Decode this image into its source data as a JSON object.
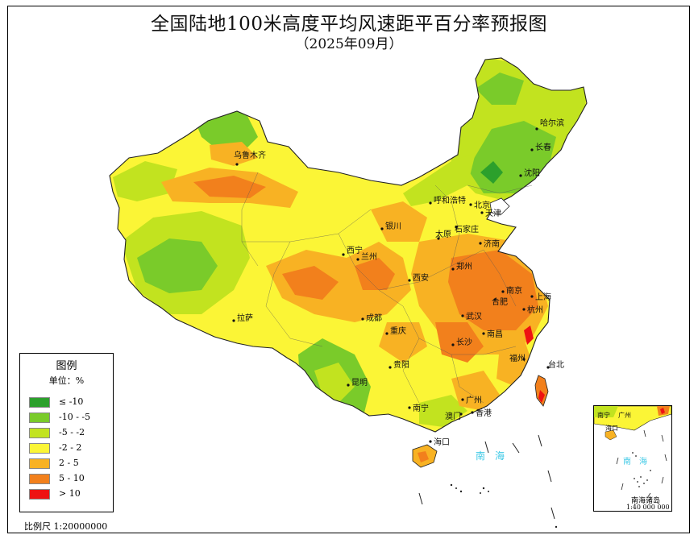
{
  "title": "全国陆地100米高度平均风速距平百分率预报图",
  "subtitle": "（2025年09月）",
  "legend": {
    "title": "图例",
    "unit": "单位：%",
    "items": [
      {
        "label": "≤ -10",
        "color": "#2ca02c"
      },
      {
        "label": "-10 - -5",
        "color": "#7acb2a"
      },
      {
        "label": "-5 - -2",
        "color": "#c2e31f"
      },
      {
        "label": "-2 - 2",
        "color": "#fbf536"
      },
      {
        "label": "2 - 5",
        "color": "#f8b223"
      },
      {
        "label": "5 - 10",
        "color": "#f2801c"
      },
      {
        "label": "> 10",
        "color": "#ee1212"
      }
    ]
  },
  "scale_text": "比例尺 1:20000000",
  "inset": {
    "label": "南海诸岛",
    "scale_text": "1:40 000 000",
    "cities": [
      {
        "name": "南宁"
      },
      {
        "name": "广州"
      },
      {
        "name": "海口"
      }
    ],
    "sea_label": "南　海"
  },
  "sea_labels": [
    {
      "name": "南　海"
    }
  ],
  "cities": [
    {
      "name": "哈尔滨"
    },
    {
      "name": "长春"
    },
    {
      "name": "沈阳"
    },
    {
      "name": "乌鲁木齐"
    },
    {
      "name": "呼和浩特"
    },
    {
      "name": "北京"
    },
    {
      "name": "天津"
    },
    {
      "name": "石家庄"
    },
    {
      "name": "太原"
    },
    {
      "name": "济南"
    },
    {
      "name": "银川"
    },
    {
      "name": "西宁"
    },
    {
      "name": "兰州"
    },
    {
      "name": "郑州"
    },
    {
      "name": "西安"
    },
    {
      "name": "南京"
    },
    {
      "name": "合肥"
    },
    {
      "name": "上海"
    },
    {
      "name": "杭州"
    },
    {
      "name": "武汉"
    },
    {
      "name": "成都"
    },
    {
      "name": "重庆"
    },
    {
      "name": "拉萨"
    },
    {
      "name": "南昌"
    },
    {
      "name": "长沙"
    },
    {
      "name": "福州"
    },
    {
      "name": "台北"
    },
    {
      "name": "贵阳"
    },
    {
      "name": "昆明"
    },
    {
      "name": "广州"
    },
    {
      "name": "南宁"
    },
    {
      "name": "香港"
    },
    {
      "name": "澳门"
    },
    {
      "name": "海口"
    }
  ]
}
